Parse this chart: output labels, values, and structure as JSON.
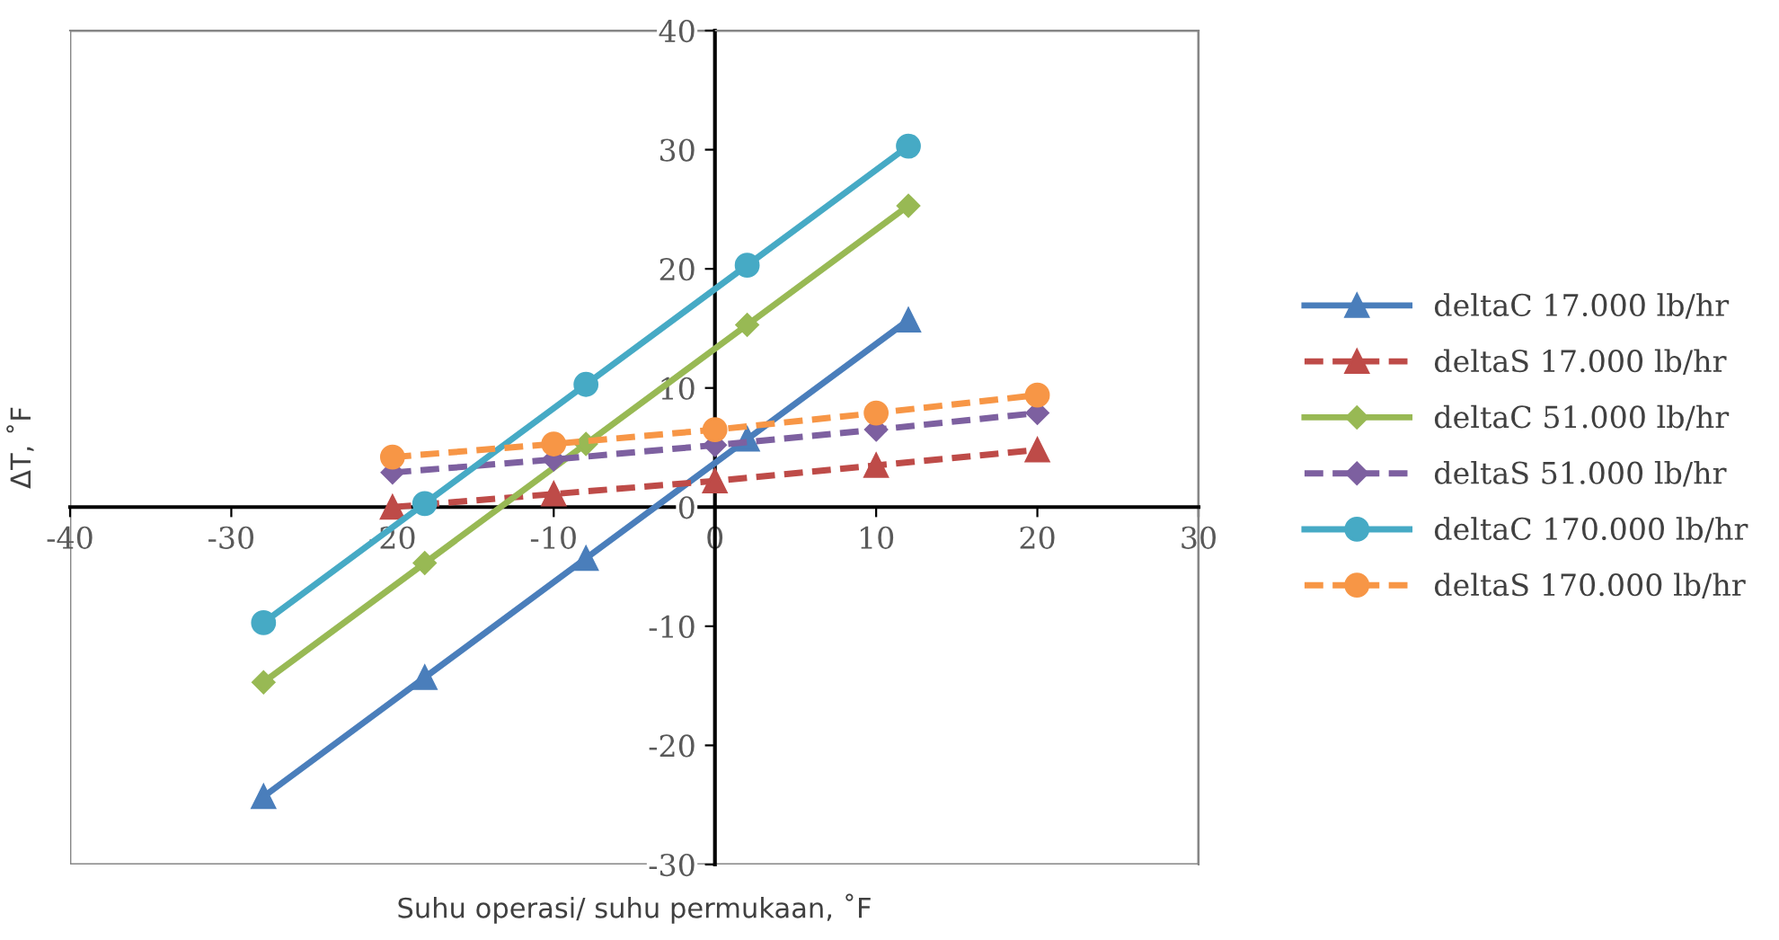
{
  "chart_data": {
    "type": "line",
    "xlabel": "Suhu operasi/ suhu permukaan, ˚F",
    "ylabel": "ΔT, ˚F",
    "xlim": [
      -40,
      30
    ],
    "xticks": [
      -40,
      -30,
      -20,
      -10,
      0,
      10,
      20,
      30
    ],
    "ylim": [
      -30,
      40
    ],
    "yticks": [
      -30,
      -20,
      -10,
      0,
      10,
      20,
      30,
      40
    ],
    "grid": false,
    "legend": "right",
    "series": [
      {
        "name": "deltaC 17.000 lb/hr",
        "color": "#4a7ebb",
        "marker": "triangle",
        "line_style": "solid",
        "x": [
          -28,
          -18,
          -8,
          2,
          12
        ],
        "values": [
          -24.3,
          -14.3,
          -4.3,
          5.7,
          15.7
        ]
      },
      {
        "name": "deltaS 17.000 lb/hr",
        "color": "#be4b48",
        "marker": "triangle",
        "line_style": "dashed",
        "x": [
          -20,
          -10,
          0,
          10,
          20
        ],
        "values": [
          0,
          1.1,
          2.2,
          3.5,
          4.8
        ]
      },
      {
        "name": "deltaC 51.000 lb/hr",
        "color": "#98b954",
        "marker": "diamond",
        "line_style": "solid",
        "x": [
          -28,
          -18,
          -8,
          2,
          12
        ],
        "values": [
          -14.7,
          -4.7,
          5.3,
          15.3,
          25.3
        ]
      },
      {
        "name": "deltaS 51.000 lb/hr",
        "color": "#7d60a0",
        "marker": "diamond",
        "line_style": "dashed",
        "x": [
          -20,
          -10,
          0,
          10,
          20
        ],
        "values": [
          2.9,
          4.0,
          5.2,
          6.5,
          7.9
        ]
      },
      {
        "name": "deltaC 170.000 lb/hr",
        "color": "#46aac5",
        "marker": "circle",
        "line_style": "solid",
        "x": [
          -28,
          -18,
          -8,
          2,
          12
        ],
        "values": [
          -9.7,
          0.3,
          10.3,
          20.3,
          30.3
        ]
      },
      {
        "name": "deltaS 170.000 lb/hr",
        "color": "#f79646",
        "marker": "circle",
        "line_style": "dashed",
        "x": [
          -20,
          -10,
          0,
          10,
          20
        ],
        "values": [
          4.2,
          5.3,
          6.5,
          7.9,
          9.4
        ]
      }
    ]
  }
}
